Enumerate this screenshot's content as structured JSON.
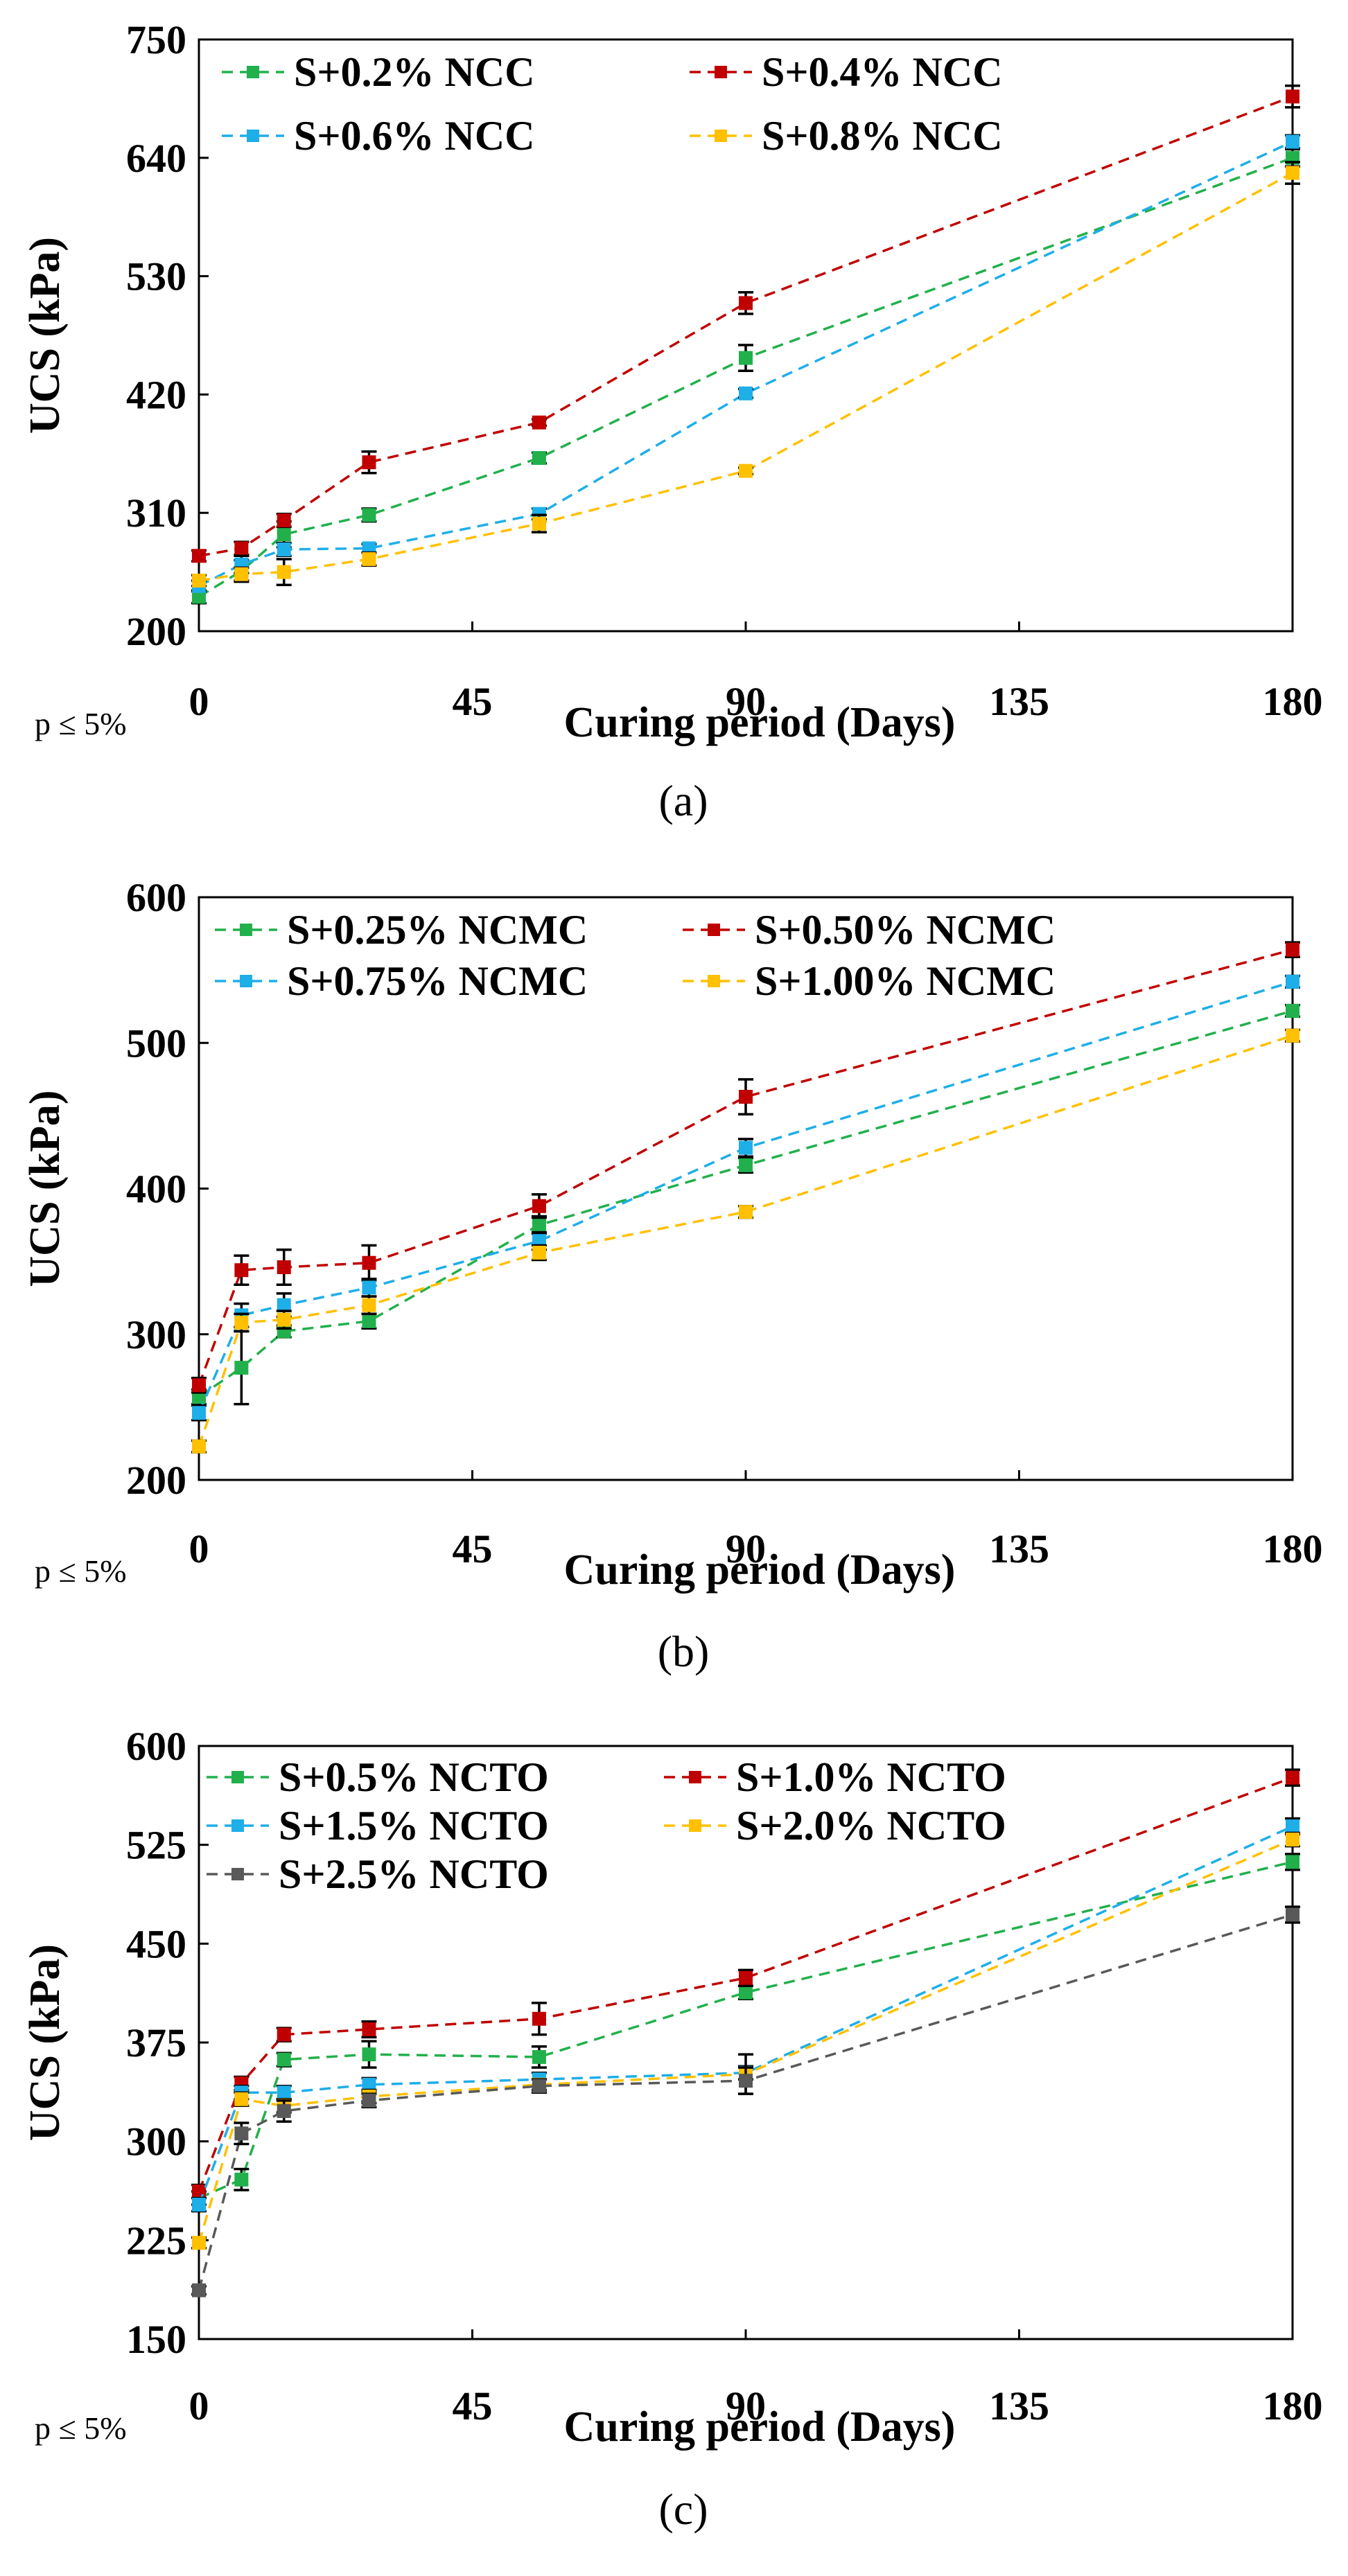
{
  "figure": {
    "colors": {
      "green": "#22b04c",
      "red": "#c00000",
      "blue": "#1eaee8",
      "orange": "#ffc000",
      "gray": "#595959"
    }
  },
  "chart_data": [
    {
      "type": "line",
      "caption": "(a)",
      "significance_note": "p ≤ 5%",
      "xlabel": "Curing period (Days)",
      "ylabel": "UCS (kPa)",
      "xlim": [
        0,
        180
      ],
      "ylim": [
        200,
        750
      ],
      "xticks": [
        0,
        45,
        90,
        135,
        180
      ],
      "yticks": [
        200,
        310,
        420,
        530,
        640,
        750
      ],
      "x": [
        0,
        7,
        14,
        28,
        56,
        90,
        180
      ],
      "legend_columns": 2,
      "series": [
        {
          "name": "S+0.2% NCC",
          "color": "#22b04c",
          "values": [
            232,
            256,
            290,
            308,
            361,
            454,
            640
          ],
          "errors": [
            6,
            10,
            12,
            6,
            5,
            12,
            8
          ]
        },
        {
          "name": "S+0.4% NCC",
          "color": "#c00000",
          "values": [
            270,
            277,
            303,
            357,
            394,
            505,
            697
          ],
          "errors": [
            5,
            6,
            6,
            10,
            3,
            10,
            10
          ]
        },
        {
          "name": "S+0.6% NCC",
          "color": "#1eaee8",
          "values": [
            242,
            262,
            276,
            277,
            309,
            421,
            655
          ],
          "errors": [
            5,
            8,
            6,
            4,
            5,
            4,
            6
          ]
        },
        {
          "name": "S+0.8% NCC",
          "color": "#ffc000",
          "values": [
            247,
            253,
            255,
            267,
            300,
            349,
            626
          ],
          "errors": [
            5,
            6,
            12,
            6,
            8,
            3,
            10
          ]
        }
      ]
    },
    {
      "type": "line",
      "caption": "(b)",
      "significance_note": "p ≤ 5%",
      "xlabel": "Curing period (Days)",
      "ylabel": "UCS (kPa)",
      "xlim": [
        0,
        180
      ],
      "ylim": [
        200,
        600
      ],
      "xticks": [
        0,
        45,
        90,
        135,
        180
      ],
      "yticks": [
        200,
        300,
        400,
        500,
        600
      ],
      "x": [
        0,
        7,
        14,
        28,
        56,
        90,
        180
      ],
      "legend_columns": 2,
      "series": [
        {
          "name": "S+0.25% NCMC",
          "color": "#22b04c",
          "values": [
            257,
            277,
            302,
            309,
            375,
            416,
            522
          ],
          "errors": [
            5,
            25,
            4,
            5,
            6,
            5,
            4
          ]
        },
        {
          "name": "S+0.50% NCMC",
          "color": "#c00000",
          "values": [
            265,
            344,
            346,
            349,
            388,
            463,
            564
          ],
          "errors": [
            5,
            10,
            12,
            12,
            8,
            12,
            5
          ]
        },
        {
          "name": "S+0.75% NCMC",
          "color": "#1eaee8",
          "values": [
            246,
            313,
            320,
            332,
            364,
            428,
            542
          ],
          "errors": [
            5,
            8,
            8,
            6,
            6,
            6,
            4
          ]
        },
        {
          "name": "S+1.00% NCMC",
          "color": "#ffc000",
          "values": [
            223,
            308,
            310,
            320,
            356,
            384,
            505
          ],
          "errors": [
            4,
            6,
            6,
            6,
            5,
            4,
            4
          ]
        }
      ]
    },
    {
      "type": "line",
      "caption": "(c)",
      "significance_note": "p ≤ 5%",
      "xlabel": "Curing period (Days)",
      "ylabel": "UCS (kPa)",
      "xlim": [
        0,
        180
      ],
      "ylim": [
        150,
        600
      ],
      "xticks": [
        0,
        45,
        90,
        135,
        180
      ],
      "yticks": [
        150,
        225,
        300,
        375,
        450,
        525,
        600
      ],
      "x": [
        0,
        7,
        14,
        28,
        56,
        90,
        180
      ],
      "legend_columns": 2,
      "series": [
        {
          "name": "S+0.5% NCTO",
          "color": "#22b04c",
          "values": [
            257,
            271,
            362,
            366,
            364,
            413,
            512
          ],
          "errors": [
            5,
            8,
            5,
            10,
            8,
            5,
            6
          ]
        },
        {
          "name": "S+1.0% NCTO",
          "color": "#c00000",
          "values": [
            262,
            344,
            381,
            385,
            393,
            424,
            576
          ],
          "errors": [
            5,
            5,
            5,
            6,
            12,
            6,
            6
          ]
        },
        {
          "name": "S+1.5% NCTO",
          "color": "#1eaee8",
          "values": [
            252,
            337,
            337,
            343,
            347,
            352,
            539
          ],
          "errors": [
            5,
            5,
            5,
            5,
            5,
            5,
            6
          ]
        },
        {
          "name": "S+2.0% NCTO",
          "color": "#ffc000",
          "values": [
            223,
            332,
            327,
            334,
            343,
            351,
            529
          ],
          "errors": [
            4,
            5,
            5,
            5,
            4,
            15,
            5
          ]
        },
        {
          "name": "S+2.5% NCTO",
          "color": "#595959",
          "values": [
            187,
            306,
            323,
            331,
            342,
            346,
            472
          ],
          "errors": [
            3,
            8,
            8,
            5,
            5,
            10,
            6
          ]
        }
      ]
    }
  ]
}
